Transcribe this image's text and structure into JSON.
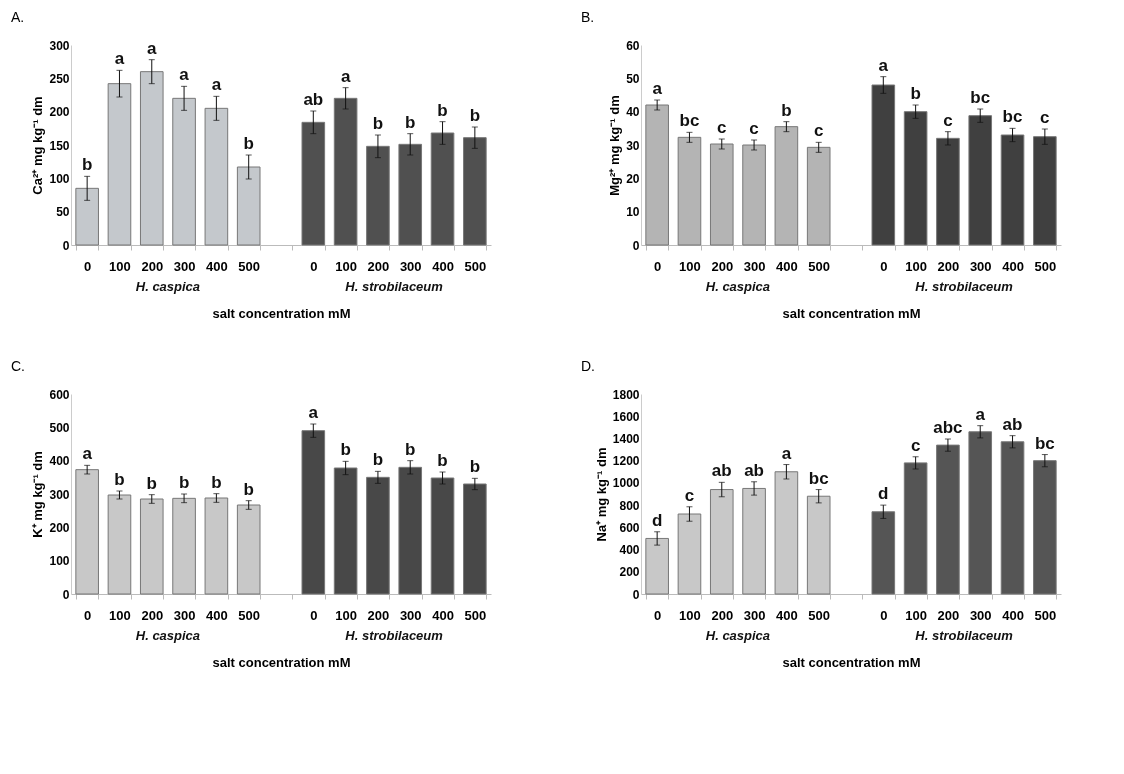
{
  "chart_data": [
    {
      "type": "bar",
      "title": "A.",
      "xlabel": "salt concentration mM",
      "ylabel": "Ca²⁺  mg kg⁻¹ dm",
      "annotations": [
        "H. caspica",
        "H. strobilaceum"
      ],
      "categories": [
        "0",
        "100",
        "200",
        "300",
        "400",
        "500",
        null,
        "0",
        "100",
        "200",
        "300",
        "400",
        "500"
      ],
      "values": [
        85,
        242,
        260,
        220,
        205,
        117,
        null,
        184,
        220,
        148,
        151,
        168,
        161
      ],
      "errors": [
        18,
        20,
        18,
        18,
        18,
        18,
        null,
        17,
        16,
        17,
        16,
        17,
        16
      ],
      "value_labels": [
        "b",
        "a",
        "a",
        "a",
        "a",
        "b",
        null,
        "ab",
        "a",
        "b",
        "b",
        "b",
        "b"
      ],
      "colors": [
        "#c4c8cc",
        "#c4c8cc",
        "#c4c8cc",
        "#c4c8cc",
        "#c4c8cc",
        "#c4c8cc",
        null,
        "#505050",
        "#505050",
        "#505050",
        "#505050",
        "#505050",
        "#505050"
      ],
      "ylim": [
        0,
        300
      ],
      "yticks": [
        0,
        50,
        100,
        150,
        200,
        250,
        300
      ]
    },
    {
      "type": "bar",
      "title": "B.",
      "xlabel": "salt concentration mM",
      "ylabel": "Mg²⁺  mg kg⁻¹ dm",
      "annotations": [
        "H. caspica",
        "H. strobilaceum"
      ],
      "categories": [
        "0",
        "100",
        "200",
        "300",
        "400",
        "500",
        null,
        "0",
        "100",
        "200",
        "300",
        "400",
        "500"
      ],
      "values": [
        42,
        32.3,
        30.3,
        30,
        35.5,
        29.3,
        null,
        48,
        40,
        32,
        38.8,
        33,
        32.5
      ],
      "errors": [
        1.5,
        1.5,
        1.5,
        1.5,
        1.5,
        1.5,
        null,
        2.5,
        2,
        2,
        2,
        2,
        2.3
      ],
      "value_labels": [
        "a",
        "bc",
        "c",
        "c",
        "b",
        "c",
        null,
        "a",
        "b",
        "c",
        "bc",
        "bc",
        "c"
      ],
      "colors": [
        "#b4b4b4",
        "#b4b4b4",
        "#b4b4b4",
        "#b4b4b4",
        "#b4b4b4",
        "#b4b4b4",
        null,
        "#404040",
        "#404040",
        "#404040",
        "#404040",
        "#404040",
        "#404040"
      ],
      "ylim": [
        0,
        60
      ],
      "yticks": [
        0,
        10,
        20,
        30,
        40,
        50,
        60
      ]
    },
    {
      "type": "bar",
      "title": "C.",
      "xlabel": "salt concentration mM",
      "ylabel": "K⁺  mg kg⁻¹ dm",
      "annotations": [
        "H. caspica",
        "H. strobilaceum"
      ],
      "categories": [
        "0",
        "100",
        "200",
        "300",
        "400",
        "500",
        null,
        "0",
        "100",
        "200",
        "300",
        "400",
        "500"
      ],
      "values": [
        373,
        297,
        285,
        287,
        288,
        267,
        null,
        490,
        378,
        350,
        380,
        348,
        330
      ],
      "errors": [
        13,
        12,
        13,
        13,
        13,
        13,
        null,
        20,
        20,
        18,
        20,
        18,
        17
      ],
      "value_labels": [
        "a",
        "b",
        "b",
        "b",
        "b",
        "b",
        null,
        "a",
        "b",
        "b",
        "b",
        "b",
        "b"
      ],
      "colors": [
        "#c8c8c8",
        "#c8c8c8",
        "#c8c8c8",
        "#c8c8c8",
        "#c8c8c8",
        "#c8c8c8",
        null,
        "#484848",
        "#484848",
        "#484848",
        "#484848",
        "#484848",
        "#484848"
      ],
      "ylim": [
        0,
        600
      ],
      "yticks": [
        0,
        100,
        200,
        300,
        400,
        500,
        600
      ]
    },
    {
      "type": "bar",
      "title": "D.",
      "xlabel": "salt concentration mM",
      "ylabel": "Na⁺  mg kg⁻¹ dm",
      "annotations": [
        "H. caspica",
        "H. strobilaceum"
      ],
      "categories": [
        "0",
        "100",
        "200",
        "300",
        "400",
        "500",
        null,
        "0",
        "100",
        "200",
        "300",
        "400",
        "500"
      ],
      "values": [
        500,
        720,
        940,
        950,
        1100,
        880,
        null,
        740,
        1180,
        1340,
        1460,
        1370,
        1200
      ],
      "errors": [
        60,
        65,
        65,
        60,
        65,
        60,
        null,
        60,
        55,
        55,
        55,
        55,
        55
      ],
      "value_labels": [
        "d",
        "c",
        "ab",
        "ab",
        "a",
        "bc",
        null,
        "d",
        "c",
        "abc",
        "a",
        "ab",
        "bc"
      ],
      "colors": [
        "#c8c8c8",
        "#c8c8c8",
        "#c8c8c8",
        "#c8c8c8",
        "#c8c8c8",
        "#c8c8c8",
        null,
        "#555555",
        "#555555",
        "#555555",
        "#555555",
        "#555555",
        "#555555"
      ],
      "ylim": [
        0,
        1800
      ],
      "yticks": [
        0,
        200,
        400,
        600,
        800,
        1000,
        1200,
        1400,
        1600,
        1800
      ]
    }
  ]
}
